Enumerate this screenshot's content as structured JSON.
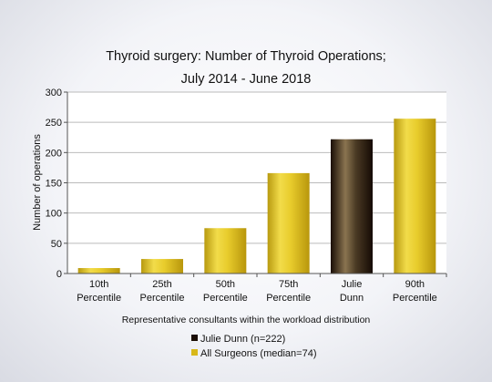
{
  "chart_data": {
    "type": "bar",
    "title_lines": [
      "Thyroid surgery: Number of Thyroid Operations;",
      "July 2014 - June 2018"
    ],
    "xlabel": "Representative consultants within the workload distribution",
    "ylabel": "Number of operations",
    "ylim": [
      0,
      300
    ],
    "yticks": [
      0,
      50,
      100,
      150,
      200,
      250,
      300
    ],
    "grid": true,
    "categories": [
      [
        "10th",
        "Percentile"
      ],
      [
        "25th",
        "Percentile"
      ],
      [
        "50th",
        "Percentile"
      ],
      [
        "75th",
        "Percentile"
      ],
      [
        "Julie",
        "Dunn"
      ],
      [
        "90th",
        "Percentile"
      ]
    ],
    "values": [
      9,
      24,
      75,
      166,
      222,
      256
    ],
    "bar_series": [
      1,
      1,
      1,
      1,
      0,
      1
    ],
    "series": [
      {
        "name": "Julie Dunn (n=222)",
        "color": "#2a1a10"
      },
      {
        "name": "All Surgeons (median=74)",
        "color": "#d8b81a"
      }
    ],
    "legend_position": "bottom"
  }
}
